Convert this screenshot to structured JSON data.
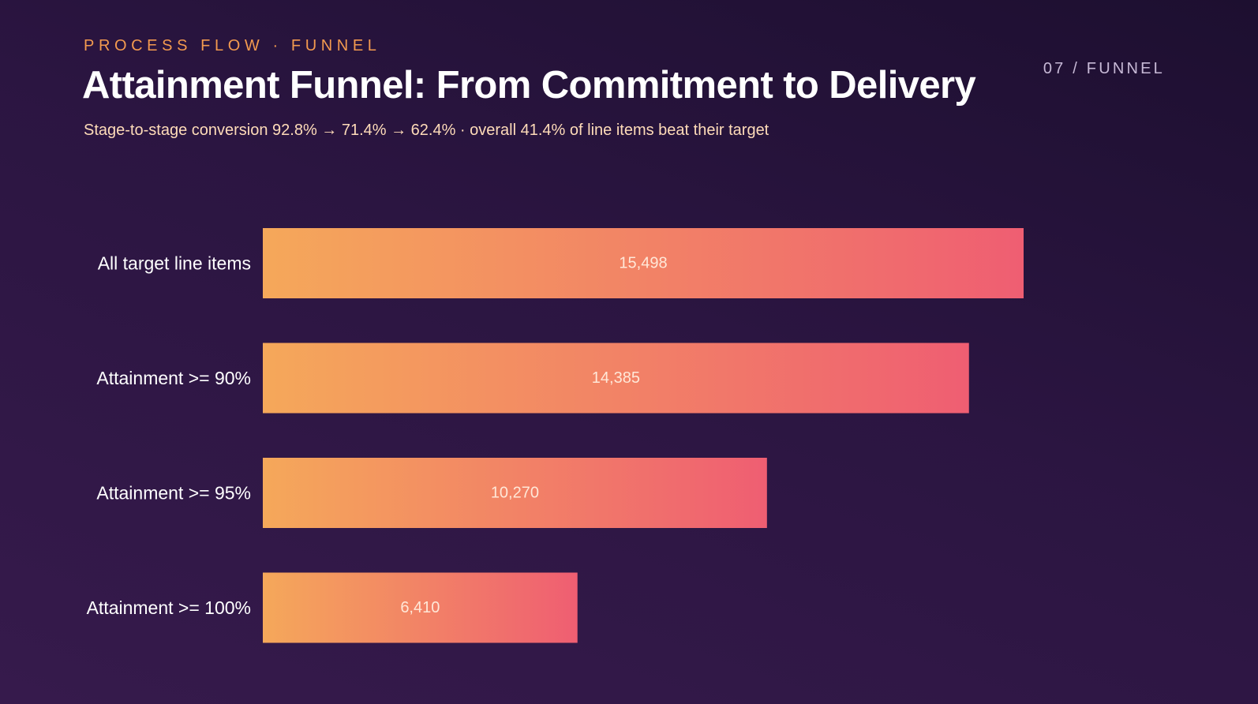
{
  "slide": {
    "eyebrow": "PROCESS FLOW · FUNNEL",
    "number": "07 / FUNNEL",
    "title": "Attainment Funnel: From Commitment to Delivery",
    "subtitle": "Stage-to-stage conversion 92.8% → 71.4% → 62.4% · overall 41.4% of line items beat their target"
  },
  "colors": {
    "bar_start": "#f5a85a",
    "bar_end": "#ef5e72",
    "eyebrow": "#f39a4f",
    "subtitle": "#ffdcb9"
  },
  "chart_data": {
    "type": "bar",
    "orientation": "horizontal",
    "categories": [
      "All target line items",
      "Attainment >= 90%",
      "Attainment >= 95%",
      "Attainment >= 100%"
    ],
    "values": [
      15498,
      14385,
      10270,
      6410
    ],
    "value_labels": [
      "15,498",
      "14,385",
      "10,270",
      "6,410"
    ],
    "xlim": [
      0,
      15498
    ],
    "grid": false,
    "legend": "none"
  }
}
